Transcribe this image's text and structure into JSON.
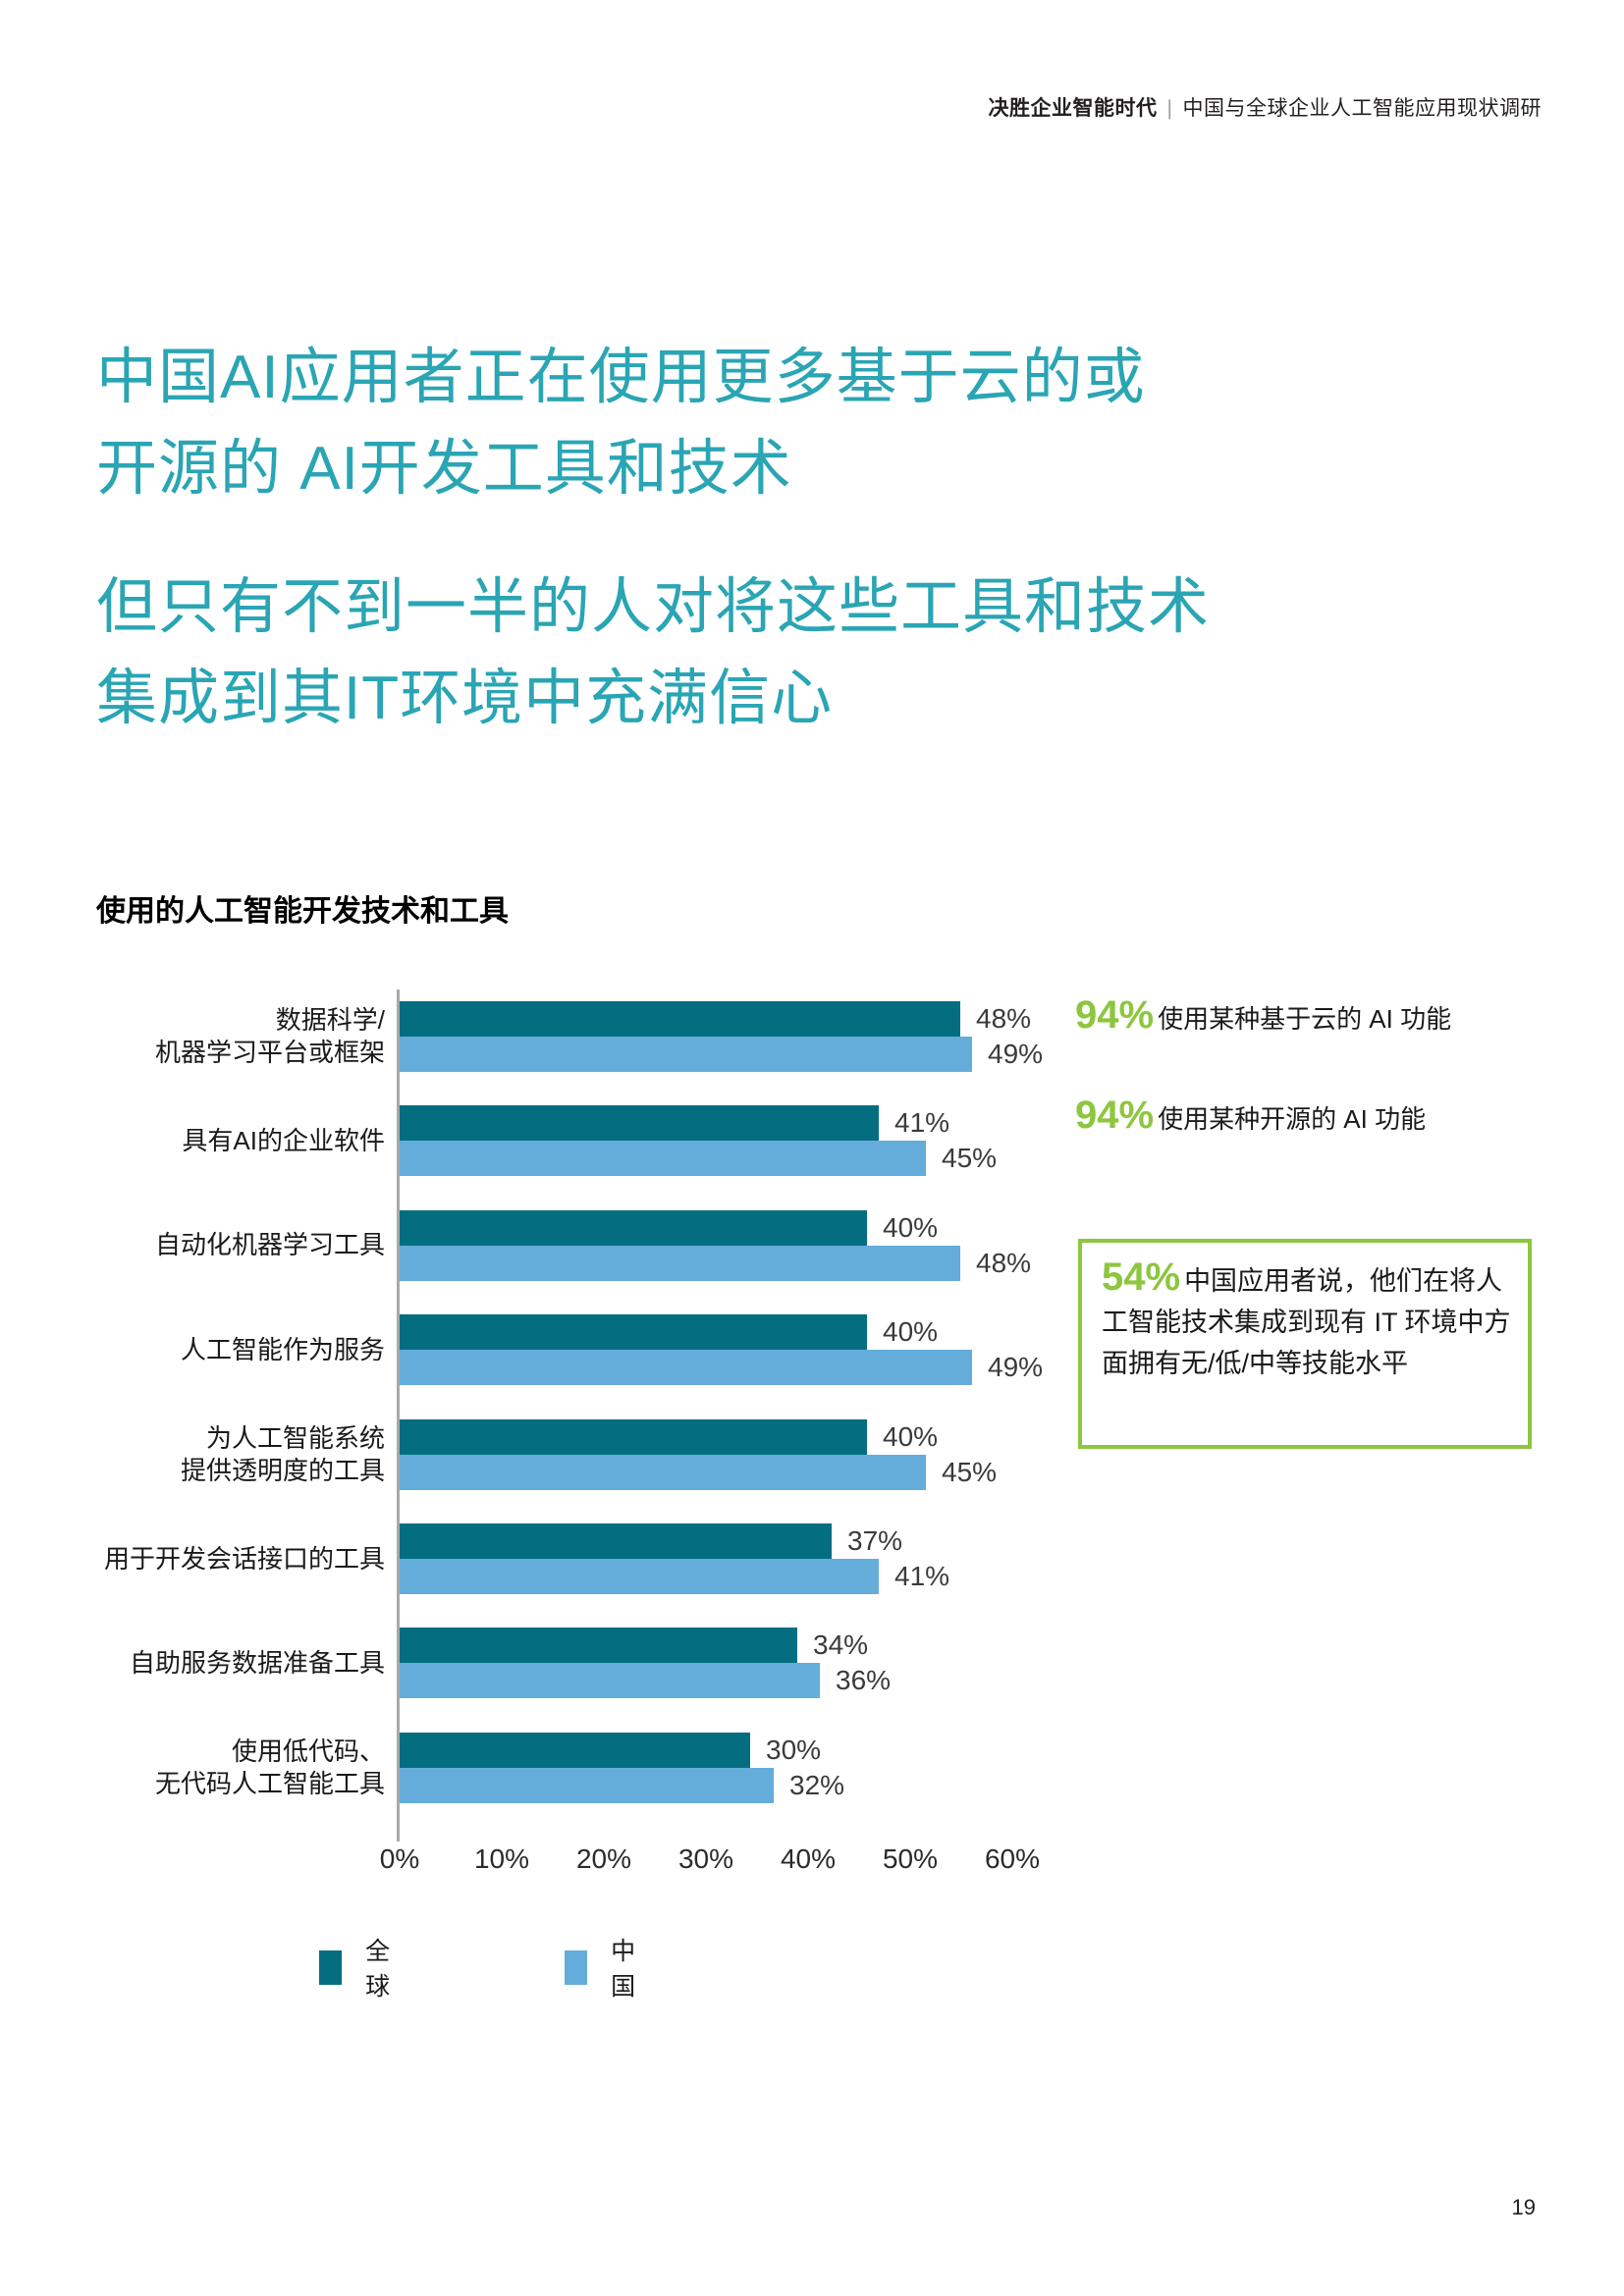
{
  "header": {
    "bold": "决胜企业智能时代",
    "separator": "|",
    "rest": "中国与全球企业人工智能应用现状调研"
  },
  "headings": {
    "h1_lines": [
      "中国AI应用者正在使用更多基于云的或",
      "开源的 AI开发工具和技术"
    ],
    "h2_lines": [
      "但只有不到一半的人对将这些工具和技术",
      "集成到其IT环境中充满信心"
    ],
    "accent_teal": "#2AA5B4"
  },
  "chart_data": {
    "type": "bar",
    "orientation": "horizontal",
    "title": "使用的人工智能开发技术和工具",
    "categories": [
      [
        "数据科学/",
        "机器学习平台或框架"
      ],
      [
        "具有AI的企业软件"
      ],
      [
        "自动化机器学习工具"
      ],
      [
        "人工智能作为服务"
      ],
      [
        "为人工智能系统",
        "提供透明度的工具"
      ],
      [
        "用于开发会话接口的工具"
      ],
      [
        "自助服务数据准备工具"
      ],
      [
        "使用低代码、",
        "无代码人工智能工具"
      ]
    ],
    "series": [
      {
        "name": "全球",
        "color": "#046E80",
        "values": [
          48,
          41,
          40,
          40,
          40,
          37,
          34,
          30
        ]
      },
      {
        "name": "中国",
        "color": "#64ADDB",
        "values": [
          49,
          45,
          48,
          49,
          45,
          41,
          36,
          32
        ]
      }
    ],
    "value_suffix": "%",
    "xlim": [
      0,
      60
    ],
    "x_ticks": [
      "0%",
      "10%",
      "20%",
      "30%",
      "40%",
      "50%",
      "60%"
    ],
    "grid": false,
    "legend_position": "bottom",
    "axis_color": "#a7a9ac"
  },
  "stats": [
    {
      "value": "94%",
      "text": "使用某种基于云的 AI 功能"
    },
    {
      "value": "94%",
      "text": "使用某种开源的 AI 功能"
    }
  ],
  "callout_box": {
    "value": "54%",
    "text": "中国应用者说，他们在将人工智能技术集成到现有 IT 环境中方面拥有无/低/中等技能水平",
    "border_color": "#8DC63F"
  },
  "accent_green": "#8DC63F",
  "page_number": "19"
}
